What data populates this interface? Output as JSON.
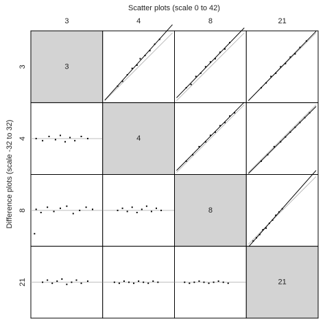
{
  "chart_data": {
    "type": "scatter_matrix",
    "title": "Scatter plots (scale 0 to 42)",
    "ylabel": "Difference plots (scale -32 to 32)",
    "variables": [
      "3",
      "4",
      "8",
      "21"
    ],
    "color": "#000000",
    "upper": {
      "xlim": [
        0,
        42
      ],
      "ylim": [
        0,
        42
      ]
    },
    "lower": {
      "xlim": [
        0,
        42
      ],
      "ylim": [
        -32,
        32
      ]
    },
    "panels": [
      [
        null,
        {
          "x": [
            8,
            11,
            14,
            17,
            20,
            22,
            25,
            28,
            31,
            34
          ],
          "y": [
            9,
            12,
            16,
            20,
            22,
            26,
            28,
            31,
            35,
            38
          ]
        },
        {
          "x": [
            6,
            9,
            12,
            15,
            18,
            21,
            24,
            27,
            30,
            33
          ],
          "y": [
            8,
            10,
            15,
            17,
            21,
            24,
            26,
            30,
            32,
            36
          ]
        },
        {
          "x": [
            8,
            11,
            14,
            17,
            20,
            23,
            26,
            29,
            32,
            36
          ],
          "y": [
            8,
            11,
            15,
            17,
            21,
            23,
            27,
            29,
            33,
            37
          ]
        }
      ],
      [
        {
          "x": [
            2,
            6,
            10,
            14,
            17,
            20,
            23,
            26,
            30,
            34
          ],
          "y": [
            0,
            -2,
            2,
            -1,
            3,
            -3,
            1,
            -2,
            2,
            0
          ]
        },
        null,
        {
          "x": [
            6,
            10,
            14,
            18,
            21,
            24,
            27,
            30,
            33,
            36
          ],
          "y": [
            7,
            11,
            16,
            19,
            23,
            25,
            29,
            31,
            35,
            37
          ]
        },
        {
          "x": [
            8,
            12,
            16,
            20,
            23,
            26,
            29,
            32,
            35,
            38
          ],
          "y": [
            7,
            11,
            16,
            19,
            22,
            25,
            28,
            31,
            34,
            37
          ]
        }
      ],
      [
        {
          "x": [
            1,
            2,
            5,
            9,
            13,
            17,
            21,
            25,
            29,
            33,
            37
          ],
          "y": [
            -22,
            1,
            -2,
            3,
            -1,
            2,
            4,
            -3,
            0,
            3,
            1
          ]
        },
        {
          "x": [
            8,
            11,
            14,
            17,
            20,
            23,
            26,
            29,
            32,
            35
          ],
          "y": [
            0,
            2,
            -1,
            3,
            -2,
            1,
            4,
            -1,
            2,
            0
          ]
        },
        null,
        {
          "x": [
            3,
            5,
            7,
            9,
            11,
            13,
            15,
            17,
            19,
            21
          ],
          "y": [
            2,
            4,
            6,
            9,
            10,
            13,
            15,
            18,
            20,
            22
          ]
        }
      ],
      [
        {
          "x": [
            6,
            9,
            12,
            15,
            18,
            21,
            24,
            27,
            30,
            34
          ],
          "y": [
            0,
            2,
            -1,
            1,
            3,
            -2,
            0,
            2,
            -1,
            1
          ]
        },
        {
          "x": [
            6,
            9,
            12,
            15,
            18,
            21,
            24,
            27,
            30,
            33
          ],
          "y": [
            0,
            -1,
            1,
            0,
            -1,
            1,
            0,
            -1,
            1,
            0
          ]
        },
        {
          "x": [
            5,
            8,
            11,
            14,
            17,
            20,
            23,
            26,
            29,
            32
          ],
          "y": [
            0,
            -1,
            0,
            1,
            0,
            -1,
            0,
            1,
            0,
            -1
          ]
        },
        null
      ]
    ]
  }
}
